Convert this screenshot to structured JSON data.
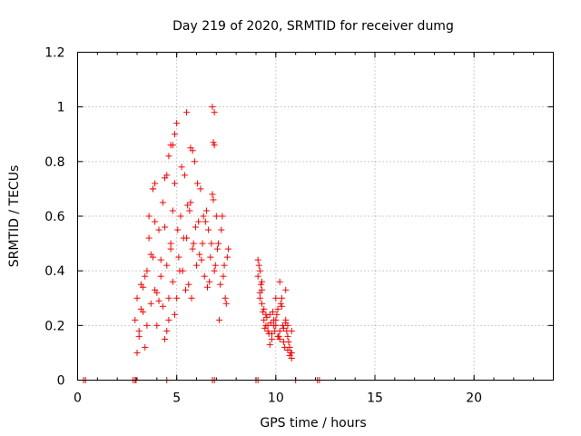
{
  "chart_data": {
    "type": "scatter",
    "title": "Day 219 of 2020, SRMTID for receiver dumg",
    "xlabel": "GPS time / hours",
    "ylabel": "SRMTID / TECUs",
    "xlim": [
      0,
      24
    ],
    "ylim": [
      0,
      1.2
    ],
    "xticks": [
      "0",
      "5",
      "10",
      "15",
      "20"
    ],
    "yticks": [
      "0",
      "0.2",
      "0.4",
      "0.6",
      "0.8",
      "1",
      "1.2"
    ],
    "grid": true,
    "marker": "+",
    "color": "#ff0000",
    "series": [
      {
        "x": [
          0.3,
          0.4,
          2.8,
          2.9,
          2.95,
          4.5,
          6.8,
          6.9,
          9.0,
          9.1,
          11.0,
          12.1,
          12.2,
          2.9,
          3.0,
          3.1,
          3.2,
          3.3,
          3.4,
          3.5,
          3.6,
          3.7,
          3.8,
          3.9,
          4.0,
          4.1,
          4.2,
          4.3,
          4.4,
          4.5,
          4.6,
          4.7,
          4.8,
          4.9,
          3.0,
          3.2,
          3.4,
          3.6,
          3.8,
          4.0,
          4.2,
          4.4,
          4.6,
          4.8,
          3.1,
          3.3,
          3.5,
          3.7,
          3.9,
          4.1,
          4.3,
          4.5,
          4.7,
          4.9,
          5.0,
          5.1,
          5.2,
          5.3,
          5.4,
          5.5,
          5.6,
          5.7,
          5.8,
          5.9,
          6.0,
          6.1,
          6.2,
          6.3,
          6.4,
          6.5,
          6.6,
          6.7,
          6.8,
          6.9,
          7.0,
          5.05,
          5.25,
          5.45,
          5.65,
          5.85,
          6.05,
          6.25,
          6.45,
          6.65,
          6.85,
          7.05,
          5.15,
          5.35,
          5.55,
          5.75,
          5.95,
          6.15,
          6.35,
          6.55,
          6.75,
          6.95,
          7.1,
          7.2,
          7.3,
          7.4,
          7.5,
          7.6,
          7.15,
          7.25,
          7.35,
          7.45,
          7.55,
          4.8,
          4.9,
          5.0,
          4.6,
          4.7,
          5.5,
          6.8,
          6.9,
          6.85,
          6.9,
          5.7,
          5.8,
          4.5,
          4.4,
          3.8,
          3.9,
          9.1,
          9.2,
          9.3,
          9.4,
          9.5,
          9.6,
          9.7,
          9.8,
          9.9,
          10.0,
          10.1,
          10.2,
          10.3,
          10.4,
          10.5,
          10.6,
          10.7,
          10.8,
          9.15,
          9.25,
          9.35,
          9.45,
          9.55,
          9.65,
          9.75,
          9.85,
          9.95,
          10.05,
          10.15,
          10.25,
          10.35,
          10.45,
          10.55,
          10.65,
          10.75,
          9.2,
          9.4,
          9.6,
          9.8,
          10.0,
          10.2,
          10.4,
          10.6,
          10.8,
          9.3,
          9.5,
          9.7,
          9.9,
          10.1,
          10.3,
          10.5,
          10.7,
          9.1,
          9.2,
          9.3,
          10.0,
          10.2,
          10.6,
          10.5,
          10.8
        ],
        "y": [
          0,
          0,
          0,
          0,
          0,
          0,
          0,
          0,
          0,
          0,
          0,
          0,
          0,
          0.22,
          0.3,
          0.18,
          0.35,
          0.25,
          0.12,
          0.4,
          0.52,
          0.28,
          0.45,
          0.33,
          0.2,
          0.55,
          0.38,
          0.27,
          0.15,
          0.42,
          0.3,
          0.48,
          0.36,
          0.24,
          0.1,
          0.26,
          0.38,
          0.6,
          0.7,
          0.32,
          0.44,
          0.56,
          0.22,
          0.62,
          0.16,
          0.34,
          0.2,
          0.46,
          0.58,
          0.29,
          0.65,
          0.18,
          0.5,
          0.72,
          0.3,
          0.45,
          0.6,
          0.4,
          0.75,
          0.52,
          0.35,
          0.65,
          0.48,
          0.8,
          0.42,
          0.58,
          0.7,
          0.5,
          0.38,
          0.62,
          0.55,
          0.45,
          0.68,
          0.4,
          0.6,
          0.55,
          0.78,
          0.33,
          0.62,
          0.5,
          0.72,
          0.44,
          0.58,
          0.36,
          0.66,
          0.48,
          0.4,
          0.52,
          0.64,
          0.3,
          0.56,
          0.46,
          0.6,
          0.34,
          0.5,
          0.42,
          0.5,
          0.35,
          0.6,
          0.42,
          0.28,
          0.48,
          0.22,
          0.55,
          0.38,
          0.3,
          0.45,
          0.86,
          0.9,
          0.94,
          0.82,
          0.86,
          0.98,
          1.0,
          0.98,
          0.87,
          0.86,
          0.85,
          0.84,
          0.75,
          0.74,
          0.7,
          0.72,
          0.38,
          0.32,
          0.28,
          0.22,
          0.2,
          0.18,
          0.24,
          0.15,
          0.22,
          0.2,
          0.26,
          0.18,
          0.3,
          0.14,
          0.22,
          0.16,
          0.12,
          0.1,
          0.42,
          0.35,
          0.25,
          0.19,
          0.23,
          0.17,
          0.21,
          0.25,
          0.18,
          0.24,
          0.16,
          0.28,
          0.2,
          0.12,
          0.18,
          0.14,
          0.1,
          0.3,
          0.26,
          0.2,
          0.17,
          0.22,
          0.15,
          0.19,
          0.11,
          0.08,
          0.33,
          0.24,
          0.13,
          0.2,
          0.16,
          0.27,
          0.21,
          0.09,
          0.44,
          0.4,
          0.36,
          0.3,
          0.36,
          0.2,
          0.33,
          0.18
        ]
      }
    ]
  }
}
